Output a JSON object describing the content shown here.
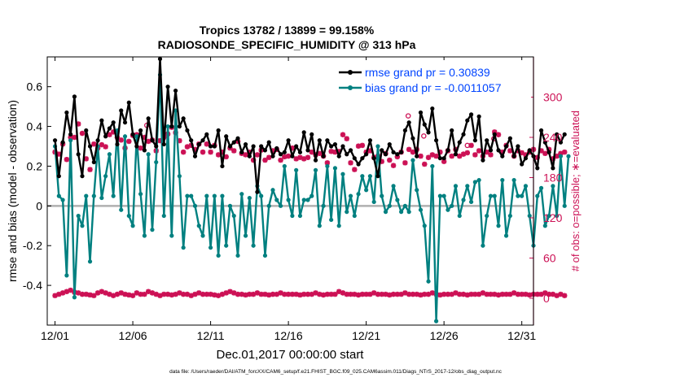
{
  "chart_data": {
    "type": "line",
    "title": "Tropics 13782 / 13899 = 99.158%",
    "subtitle": "RADIOSONDE_SPECIFIC_HUMIDITY @ 313 hPa",
    "xlabel": "Dec.01,2017 00:00:00 start",
    "ylabel_left": "rmse and bias (model - observation)",
    "ylabel_right": "# of obs: o=possible; ∗=evaluated",
    "footer": "data file: /Users/raeder/DAI/ATM_forcXX/CAM6_setup/f.e21.FHIST_BGC.f09_025.CAM6assim.011/Diags_NTrS_2017-12/obs_diag_output.nc",
    "xlim": [
      0.5,
      31.75
    ],
    "ylim_left": [
      -0.6,
      0.75
    ],
    "ylim_right": [
      -40,
      360
    ],
    "x_ticks": [
      1,
      6,
      11,
      16,
      21,
      26,
      31
    ],
    "x_tick_labels": [
      "12/01",
      "12/06",
      "12/11",
      "12/16",
      "12/21",
      "12/26",
      "12/31"
    ],
    "y_left_ticks": [
      -0.4,
      -0.2,
      0,
      0.2,
      0.4,
      0.6
    ],
    "y_left_tick_labels": [
      "-0.4",
      "-0.2",
      "0",
      "0.2",
      "0.4",
      "0.6"
    ],
    "y_right_ticks": [
      0,
      60,
      120,
      180,
      240,
      300
    ],
    "y_right_tick_labels": [
      "0",
      "60",
      "120",
      "180",
      "240",
      "300"
    ],
    "zero_line": 0,
    "legend": {
      "position": "top-right",
      "entries": [
        {
          "name": "rmse grand pr = 0.30839",
          "color": "#000000"
        },
        {
          "name": "bias grand pr = -0.0011057",
          "color": "#008080"
        }
      ]
    },
    "colors": {
      "rmse": "#000000",
      "bias": "#008080",
      "obs": "#cc1155",
      "axis": "#000000",
      "zero": "#b0b0b0",
      "legend_text": "#0044ff"
    },
    "series": [
      {
        "name": "rmse",
        "axis": "left",
        "color": "#000000",
        "values": [
          0.33,
          0.15,
          0.32,
          0.47,
          0.36,
          0.55,
          0.26,
          0.15,
          0.38,
          0.3,
          0.22,
          0.33,
          0.43,
          0.35,
          0.39,
          0.42,
          0.31,
          0.48,
          0.42,
          0.52,
          0.36,
          0.3,
          0.38,
          0.28,
          0.44,
          0.33,
          0.3,
          0.74,
          0.31,
          0.6,
          0.4,
          0.58,
          0.4,
          0.44,
          0.38,
          0.33,
          0.25,
          0.31,
          0.33,
          0.36,
          0.3,
          0.3,
          0.38,
          0.2,
          0.35,
          0.3,
          0.32,
          0.34,
          0.27,
          0.31,
          0.25,
          0.3,
          0.07,
          0.3,
          0.28,
          0.32,
          0.25,
          0.29,
          0.26,
          0.27,
          0.33,
          0.25,
          0.3,
          0.27,
          0.37,
          0.28,
          0.36,
          0.23,
          0.33,
          0.25,
          0.33,
          0.3,
          0.31,
          0.25,
          0.3,
          0.26,
          0.28,
          0.24,
          0.21,
          0.24,
          0.26,
          0.33,
          0.24,
          0.15,
          0.28,
          0.26,
          0.31,
          0.27,
          0.26,
          0.27,
          0.38,
          0.42,
          0.34,
          0.25,
          0.47,
          0.41,
          0.37,
          0.49,
          0.33,
          0.24,
          0.24,
          0.28,
          0.38,
          0.26,
          0.32,
          0.36,
          0.43,
          0.46,
          0.33,
          0.45,
          0.23,
          0.33,
          0.28,
          0.36,
          0.28,
          0.25,
          0.3,
          0.34,
          0.25,
          0.3,
          0.21,
          0.24,
          0.28,
          0.25,
          0.19,
          0.38,
          0.32,
          0.27,
          0.19,
          0.36,
          0.32,
          0.36
        ]
      },
      {
        "name": "bias",
        "axis": "left",
        "color": "#008080",
        "values": [
          0.3,
          0.05,
          0.03,
          -0.35,
          0.33,
          -0.46,
          -0.05,
          -0.1,
          0.05,
          -0.28,
          0.05,
          0.3,
          0.04,
          0.15,
          0.26,
          0.05,
          0.38,
          -0.02,
          0.35,
          -0.05,
          -0.1,
          0.35,
          0.06,
          -0.15,
          0.26,
          -0.12,
          0.22,
          0.66,
          -0.05,
          0.4,
          -0.15,
          0.48,
          0.15,
          -0.21,
          0.05,
          0.05,
          0.0,
          -0.1,
          -0.15,
          0.05,
          -0.21,
          0.05,
          -0.25,
          0.05,
          -0.2,
          0.0,
          -0.05,
          -0.25,
          0.06,
          -0.15,
          0.04,
          -0.2,
          0.1,
          0.05,
          -0.25,
          0.0,
          0.08,
          0.03,
          0.0,
          0.2,
          0.03,
          -0.05,
          0.18,
          -0.05,
          0.03,
          0.03,
          0.05,
          0.18,
          -0.1,
          0.0,
          0.2,
          -0.07,
          0.19,
          -0.1,
          0.16,
          -0.03,
          0.05,
          -0.05,
          0.06,
          0.15,
          0.08,
          0.15,
          0.02,
          0.3,
          0.05,
          -0.03,
          0.0,
          0.1,
          0.03,
          -0.03,
          0.0,
          -0.03,
          0.23,
          0.08,
          -0.02,
          -0.1,
          -0.38,
          0.2,
          -0.58,
          0.05,
          0.05,
          -0.02,
          0.0,
          0.1,
          -0.05,
          0.03,
          0.1,
          0.02,
          0.12,
          0.13,
          -0.2,
          -0.05,
          0.05,
          0.05,
          -0.1,
          0.13,
          -0.15,
          -0.05,
          0.13,
          0.05,
          0.05,
          0.1,
          -0.05,
          -0.2,
          0.05,
          0.09,
          -0.1,
          -0.05,
          0.1,
          -0.05,
          0.25,
          0.0,
          0.25
        ]
      },
      {
        "name": "obs_evaluated",
        "axis": "right",
        "color": "#cc1155",
        "values": [
          218,
          215,
          230,
          207,
          240,
          240,
          260,
          246,
          208,
          192,
          230,
          224,
          229,
          226,
          244,
          248,
          240,
          236,
          224,
          234,
          243,
          244,
          224,
          240,
          234,
          236,
          220,
          235,
          240,
          245,
          255,
          247,
          235,
          218,
          226,
          228,
          222,
          230,
          218,
          230,
          218,
          228,
          214,
          218,
          211,
          224,
          220,
          234,
          216,
          214,
          218,
          206,
          214,
          221,
          206,
          210,
          220,
          222,
          206,
          211,
          212,
          224,
          208,
          210,
          208,
          210,
          218,
          214,
          216,
          212,
          202,
          219,
          218,
          219,
          244,
          238,
          202,
          192,
          227,
          228,
          218,
          220,
          210,
          212,
          204,
          216,
          206,
          198,
          211,
          218,
          202,
          222,
          218,
          222,
          212,
          200,
          210,
          214,
          212,
          218,
          204,
          220,
          212,
          222,
          212,
          215,
          217,
          228,
          214,
          220,
          212,
          218,
          214,
          248,
          244,
          218,
          228,
          220,
          212,
          220,
          217,
          214,
          218,
          222,
          210,
          220,
          216,
          222,
          208,
          212,
          216,
          218
        ]
      },
      {
        "name": "obs_low",
        "axis": "right",
        "color": "#cc1155",
        "values": [
          4,
          6,
          8,
          10,
          12,
          9,
          8,
          6,
          6,
          5,
          4,
          8,
          10,
          8,
          6,
          4,
          6,
          8,
          6,
          5,
          4,
          8,
          6,
          6,
          10,
          8,
          6,
          4,
          6,
          6,
          5,
          6,
          8,
          6,
          6,
          4,
          6,
          8,
          6,
          6,
          6,
          5,
          4,
          6,
          8,
          10,
          8,
          6,
          6,
          5,
          6,
          6,
          8,
          6,
          6,
          5,
          6,
          6,
          8,
          6,
          6,
          6,
          6,
          5,
          6,
          6,
          6,
          8,
          6,
          5,
          6,
          6,
          6,
          10,
          8,
          6,
          6,
          6,
          5,
          6,
          6,
          6,
          8,
          6,
          6,
          6,
          5,
          6,
          6,
          6,
          8,
          6,
          6,
          6,
          5,
          6,
          6,
          8,
          6,
          5,
          6,
          6,
          6,
          8,
          6,
          6,
          5,
          6,
          6,
          6,
          8,
          6,
          6,
          6,
          5,
          6,
          6,
          6,
          8,
          6,
          6,
          6,
          5,
          6,
          6,
          6,
          8,
          6,
          6,
          4,
          6,
          4
        ]
      }
    ],
    "possible_markers": [
      {
        "day": 6.9,
        "value": 258
      },
      {
        "day": 23.7,
        "value": 272
      },
      {
        "day": 24.7,
        "value": 242
      },
      {
        "day": 27.5,
        "value": 228
      },
      {
        "day": 29.2,
        "value": 238
      }
    ]
  }
}
